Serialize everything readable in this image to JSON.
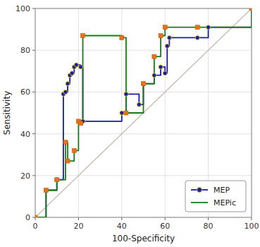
{
  "chart_data": {
    "type": "line",
    "xlabel": "100-Specificity",
    "ylabel": "Sensitivity",
    "xlim": [
      0,
      100
    ],
    "ylim": [
      0,
      100
    ],
    "xticks": [
      0,
      20,
      40,
      60,
      80,
      100
    ],
    "yticks": [
      0,
      20,
      40,
      60,
      80,
      100
    ],
    "grid": true,
    "legend": "lower right",
    "series": [
      {
        "type": "line",
        "color": "#c0b0a0",
        "x": [
          0,
          100
        ],
        "values": [
          0,
          100
        ]
      },
      {
        "name": "MEP",
        "type": "line",
        "color": "#1a1aaa",
        "x": [
          0,
          5,
          5,
          10,
          10,
          13,
          13,
          14,
          14,
          15,
          15,
          16,
          16,
          17,
          17,
          18,
          18,
          19,
          19,
          21,
          21,
          22,
          22,
          40,
          40,
          42,
          42,
          48,
          48,
          50,
          50,
          55,
          55,
          58,
          58,
          60,
          60,
          61,
          61,
          62,
          62,
          75,
          75,
          80,
          80,
          100,
          100
        ],
        "values": [
          0,
          0,
          13,
          13,
          18,
          18,
          59,
          59,
          60,
          60,
          64,
          64,
          68,
          68,
          69,
          69,
          72,
          72,
          73,
          73,
          72,
          72,
          46,
          46,
          50,
          50,
          59,
          59,
          54,
          54,
          64,
          64,
          68,
          68,
          72,
          72,
          69,
          69,
          82,
          82,
          86,
          86,
          86,
          86,
          91,
          91,
          100
        ]
      },
      {
        "name": "MEP",
        "type": "scatter",
        "marker": "circle",
        "color": "#1a1aaa",
        "x": [
          0,
          5,
          10,
          13,
          14,
          15,
          16,
          17,
          18,
          19,
          21,
          22,
          40,
          42,
          48,
          50,
          55,
          58,
          60,
          61,
          62,
          75,
          80,
          100
        ],
        "values": [
          0,
          13,
          18,
          59,
          60,
          64,
          68,
          69,
          72,
          73,
          72,
          46,
          50,
          59,
          54,
          64,
          68,
          72,
          69,
          82,
          86,
          86,
          91,
          100
        ]
      },
      {
        "name": "MEPic",
        "type": "line",
        "color": "#1a7a1a",
        "x": [
          0,
          5,
          5,
          10,
          10,
          14,
          14,
          15,
          15,
          18,
          18,
          20,
          20,
          21,
          21,
          22,
          22,
          40,
          40,
          42,
          42,
          50,
          50,
          55,
          55,
          58,
          58,
          60,
          60,
          75,
          75,
          100,
          100
        ],
        "values": [
          0,
          0,
          13,
          13,
          18,
          18,
          36,
          36,
          27,
          27,
          32,
          32,
          46,
          46,
          45,
          45,
          87,
          87,
          86,
          86,
          50,
          50,
          64,
          64,
          77,
          77,
          87,
          87,
          91,
          91,
          91,
          91,
          100
        ]
      },
      {
        "type": "scatter",
        "marker": "square",
        "color": "#e87020",
        "x": [
          0,
          5,
          10,
          14,
          15,
          18,
          20,
          21,
          22,
          40,
          42,
          50,
          55,
          58,
          60,
          75,
          100
        ],
        "values": [
          0,
          13,
          18,
          36,
          27,
          32,
          46,
          45,
          87,
          86,
          50,
          64,
          77,
          87,
          91,
          91,
          100
        ]
      }
    ]
  }
}
